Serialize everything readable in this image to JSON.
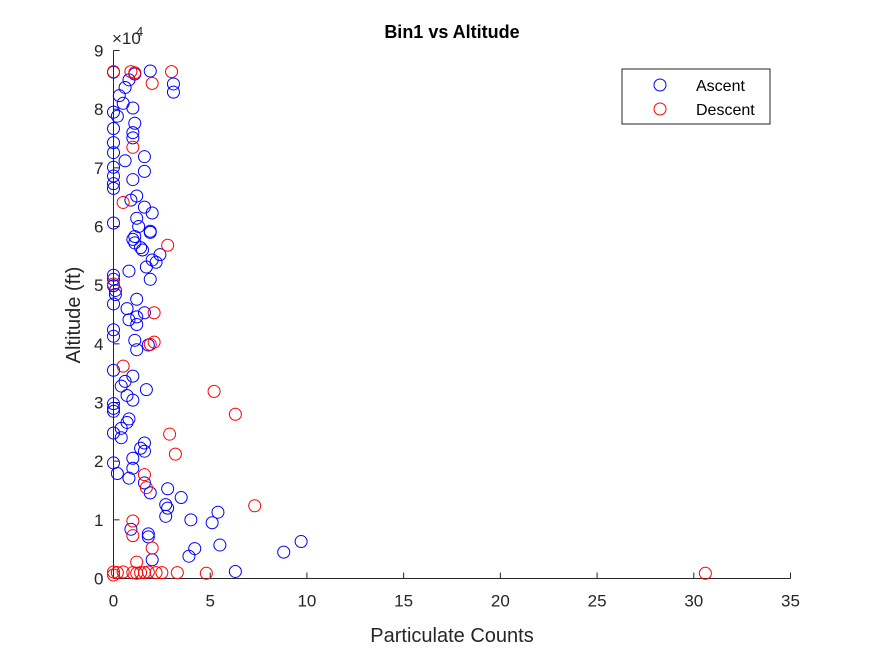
{
  "chart_data": {
    "type": "scatter",
    "title": "Bin1 vs Altitude",
    "xlabel": "Particulate Counts",
    "ylabel": "Altitude (ft)",
    "xlim": [
      0,
      35
    ],
    "ylim": [
      0,
      90000
    ],
    "xticks": [
      "0",
      "5",
      "10",
      "15",
      "20",
      "25",
      "30",
      "35"
    ],
    "yticks": [
      "0",
      "1",
      "2",
      "3",
      "4",
      "5",
      "6",
      "7",
      "8",
      "9"
    ],
    "y_exponent": {
      "base": "×10",
      "power": "4"
    },
    "legend_position": "top-right",
    "grid": false,
    "series": [
      {
        "name": "Ascent",
        "color": "#0000ff",
        "marker": "circle-open",
        "points": [
          [
            0,
            86300
          ],
          [
            0.8,
            85000
          ],
          [
            1.1,
            86000
          ],
          [
            1.9,
            86500
          ],
          [
            3.1,
            84300
          ],
          [
            3.1,
            82900
          ],
          [
            0.6,
            83700
          ],
          [
            0.3,
            82300
          ],
          [
            0.5,
            81000
          ],
          [
            1,
            80200
          ],
          [
            0,
            79500
          ],
          [
            0.2,
            78800
          ],
          [
            1.1,
            77600
          ],
          [
            0,
            76700
          ],
          [
            1,
            76000
          ],
          [
            1,
            75100
          ],
          [
            0,
            74300
          ],
          [
            0,
            72600
          ],
          [
            1.6,
            71900
          ],
          [
            0.6,
            71200
          ],
          [
            0,
            70100
          ],
          [
            1.6,
            69400
          ],
          [
            0,
            68600
          ],
          [
            1.0,
            68000
          ],
          [
            0,
            67300
          ],
          [
            0,
            66500
          ],
          [
            1.2,
            65200
          ],
          [
            0.9,
            64500
          ],
          [
            1.6,
            63300
          ],
          [
            2.0,
            62300
          ],
          [
            1.2,
            61400
          ],
          [
            0,
            60600
          ],
          [
            1.3,
            60000
          ],
          [
            1.9,
            59200
          ],
          [
            1.9,
            59000
          ],
          [
            1.1,
            58300
          ],
          [
            1.0,
            57800
          ],
          [
            1.1,
            57200
          ],
          [
            1.4,
            56400
          ],
          [
            1.5,
            56000
          ],
          [
            2.4,
            55200
          ],
          [
            2.0,
            54300
          ],
          [
            2.2,
            53900
          ],
          [
            1.7,
            53100
          ],
          [
            0.8,
            52400
          ],
          [
            0,
            51700
          ],
          [
            0,
            51000
          ],
          [
            1.9,
            51000
          ],
          [
            0,
            49900
          ],
          [
            0.1,
            49100
          ],
          [
            0.1,
            48400
          ],
          [
            1.2,
            47600
          ],
          [
            0,
            46800
          ],
          [
            0.7,
            46000
          ],
          [
            1.6,
            45300
          ],
          [
            1.2,
            44600
          ],
          [
            0.8,
            44100
          ],
          [
            1.2,
            43300
          ],
          [
            0,
            42400
          ],
          [
            0,
            41300
          ],
          [
            1.1,
            40600
          ],
          [
            1.8,
            39800
          ],
          [
            1.2,
            39000
          ],
          [
            0,
            35500
          ],
          [
            1,
            34500
          ],
          [
            0.6,
            33600
          ],
          [
            0.4,
            32800
          ],
          [
            1.7,
            32200
          ],
          [
            0.7,
            31200
          ],
          [
            1.0,
            30400
          ],
          [
            0,
            29800
          ],
          [
            0,
            29000
          ],
          [
            0,
            28500
          ],
          [
            0.8,
            27200
          ],
          [
            0.7,
            26600
          ],
          [
            0.4,
            25600
          ],
          [
            0,
            24800
          ],
          [
            0.4,
            24000
          ],
          [
            1.6,
            23100
          ],
          [
            1.4,
            22200
          ],
          [
            1.6,
            21700
          ],
          [
            1.0,
            20500
          ],
          [
            0,
            19700
          ],
          [
            1.0,
            18800
          ],
          [
            0.2,
            17900
          ],
          [
            0.8,
            17100
          ],
          [
            1.6,
            16300
          ],
          [
            1.9,
            14600
          ],
          [
            2.8,
            15300
          ],
          [
            3.5,
            13800
          ],
          [
            2.7,
            12600
          ],
          [
            2.8,
            12000
          ],
          [
            5.4,
            11300
          ],
          [
            2.7,
            10600
          ],
          [
            4.0,
            10000
          ],
          [
            5.1,
            9500
          ],
          [
            0.9,
            8400
          ],
          [
            1.8,
            7600
          ],
          [
            1.8,
            7100
          ],
          [
            5.5,
            5700
          ],
          [
            4.2,
            5100
          ],
          [
            8.8,
            4500
          ],
          [
            9.7,
            6300
          ],
          [
            3.9,
            3800
          ],
          [
            2.0,
            3200
          ],
          [
            6.3,
            1200
          ]
        ]
      },
      {
        "name": "Descent",
        "color": "#ff0000",
        "marker": "circle-open",
        "points": [
          [
            0,
            86400
          ],
          [
            0.9,
            86400
          ],
          [
            1.1,
            86200
          ],
          [
            3.0,
            86400
          ],
          [
            2.0,
            84400
          ],
          [
            1.0,
            73500
          ],
          [
            0.5,
            64100
          ],
          [
            2.8,
            56800
          ],
          [
            0,
            50200
          ],
          [
            2.1,
            45300
          ],
          [
            2.1,
            40300
          ],
          [
            1.9,
            39900
          ],
          [
            0.5,
            36200
          ],
          [
            5.2,
            31900
          ],
          [
            6.3,
            28000
          ],
          [
            2.9,
            24600
          ],
          [
            3.2,
            21200
          ],
          [
            1.6,
            17700
          ],
          [
            1.7,
            15500
          ],
          [
            7.3,
            12400
          ],
          [
            1.0,
            9800
          ],
          [
            1.0,
            7300
          ],
          [
            2.0,
            5200
          ],
          [
            1.2,
            2800
          ],
          [
            0,
            1100
          ],
          [
            0.2,
            1000
          ],
          [
            0.5,
            1100
          ],
          [
            1.0,
            1000
          ],
          [
            1.4,
            1000
          ],
          [
            1.8,
            1100
          ],
          [
            2.2,
            1000
          ],
          [
            3.3,
            1000
          ],
          [
            4.8,
            900
          ],
          [
            0,
            600
          ],
          [
            1.2,
            900
          ],
          [
            1.6,
            1000
          ],
          [
            2.5,
            1000
          ],
          [
            30.6,
            900
          ]
        ]
      }
    ]
  }
}
